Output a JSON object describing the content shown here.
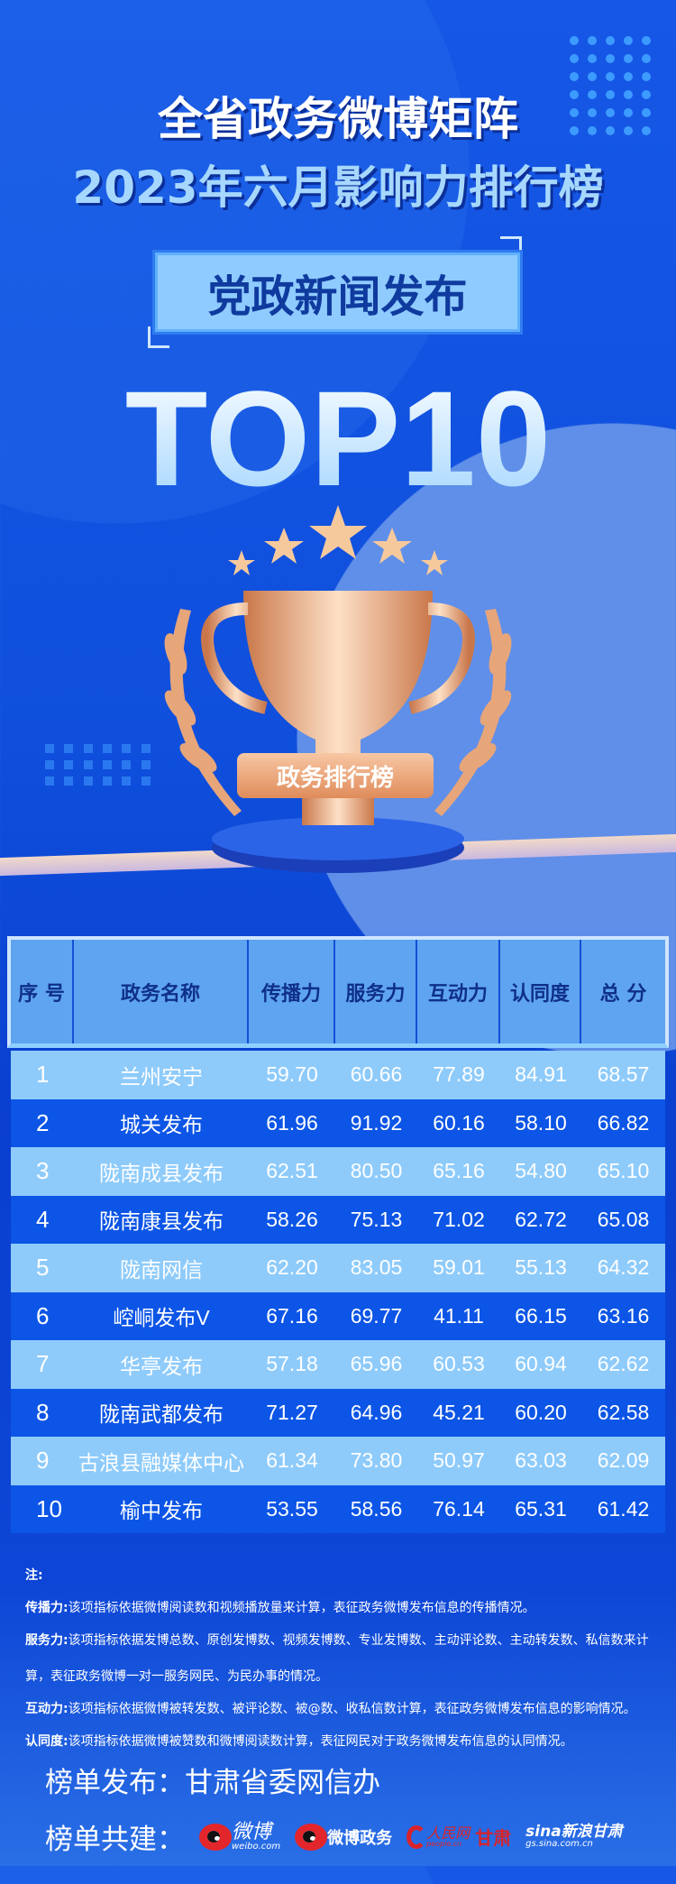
{
  "header": {
    "title_line1": "全省政务微博矩阵",
    "title_line2": "2023年六月影响力排行榜",
    "category": "党政新闻发布",
    "top": "TOP10",
    "badge": "政务排行榜"
  },
  "colors": {
    "background": "#1657e6",
    "row_light": "#8ecbfb",
    "row_dark": "#0c55e6",
    "header_bg": "#5ea4f0",
    "trophy": "#e8a070"
  },
  "table": {
    "columns": [
      "序 号",
      "政务名称",
      "传播力",
      "服务力",
      "互动力",
      "认同度",
      "总 分"
    ],
    "rows": [
      [
        "1",
        "兰州安宁",
        "59.70",
        "60.66",
        "77.89",
        "84.91",
        "68.57"
      ],
      [
        "2",
        "城关发布",
        "61.96",
        "91.92",
        "60.16",
        "58.10",
        "66.82"
      ],
      [
        "3",
        "陇南成县发布",
        "62.51",
        "80.50",
        "65.16",
        "54.80",
        "65.10"
      ],
      [
        "4",
        "陇南康县发布",
        "58.26",
        "75.13",
        "71.02",
        "62.72",
        "65.08"
      ],
      [
        "5",
        "陇南网信",
        "62.20",
        "83.05",
        "59.01",
        "55.13",
        "64.32"
      ],
      [
        "6",
        "崆峒发布V",
        "67.16",
        "69.77",
        "41.11",
        "66.15",
        "63.16"
      ],
      [
        "7",
        "华亭发布",
        "57.18",
        "65.96",
        "60.53",
        "60.94",
        "62.62"
      ],
      [
        "8",
        "陇南武都发布",
        "71.27",
        "64.96",
        "45.21",
        "60.20",
        "62.58"
      ],
      [
        "9",
        "古浪县融媒体中心",
        "61.34",
        "73.80",
        "50.97",
        "63.03",
        "62.09"
      ],
      [
        "10",
        "榆中发布",
        "53.55",
        "58.56",
        "76.14",
        "65.31",
        "61.42"
      ]
    ]
  },
  "notes": {
    "title": "注:",
    "items": [
      {
        "label": "传播力:",
        "text": "该项指标依据微博阅读数和视频播放量来计算，表征政务微博发布信息的传播情况。"
      },
      {
        "label": "服务力:",
        "text": "该项指标依据发博总数、原创发博数、视频发博数、专业发博数、主动评论数、主动转发数、私信数来计算，表征政务微博一对一服务网民、为民办事的情况。"
      },
      {
        "label": "互动力:",
        "text": "该项指标依据微博被转发数、被评论数、被@数、收私信数计算，表征政务微博发布信息的影响情况。"
      },
      {
        "label": "认同度:",
        "text": "该项指标依据微博被赞数和微博阅读数计算，表征网民对于政务微博发布信息的认同情况。"
      }
    ]
  },
  "footer": {
    "publisher": "榜单发布：甘肃省委网信办",
    "cobuild_label": "榜单共建：",
    "logos": [
      {
        "name": "微博",
        "sub": "weibo.com"
      },
      {
        "name": "微博政务"
      },
      {
        "name": "人民网",
        "sub": "people.cn",
        "extra": "甘肃"
      },
      {
        "name": "sina新浪甘肃",
        "sub": "gs.sina.com.cn"
      }
    ]
  }
}
